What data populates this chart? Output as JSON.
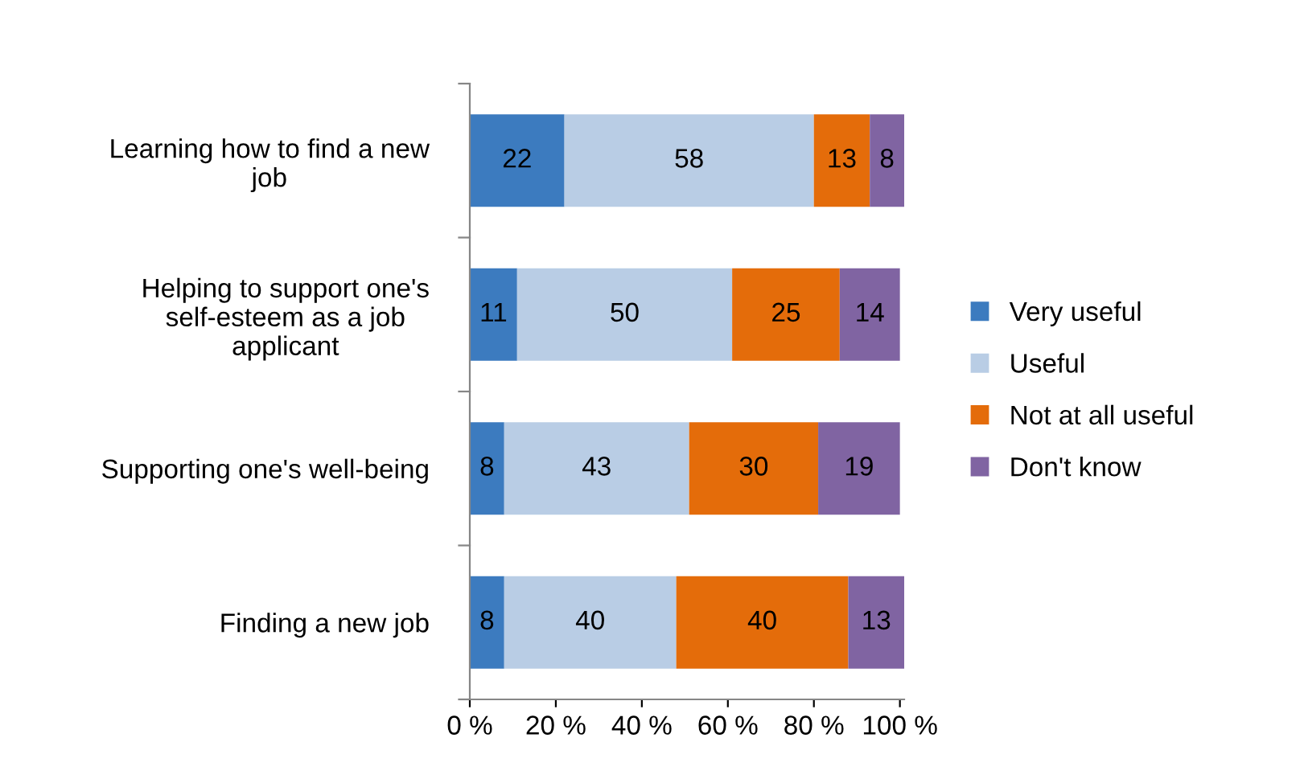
{
  "chart_data": {
    "type": "bar",
    "orientation": "horizontal",
    "stacked": true,
    "data_labels": true,
    "categories": [
      "Learning how to find a new\njob",
      "Helping to support one's\nself-esteem as a job\napplicant",
      "Supporting one's well-being",
      "Finding a new job"
    ],
    "series": [
      {
        "name": "Very useful",
        "color": "#3c7bbf",
        "values": [
          22,
          11,
          8,
          8
        ]
      },
      {
        "name": "Useful",
        "color": "#b9cde5",
        "values": [
          58,
          50,
          43,
          40
        ]
      },
      {
        "name": "Not at all useful",
        "color": "#e46c0a",
        "values": [
          13,
          25,
          30,
          40
        ]
      },
      {
        "name": "Don't know",
        "color": "#8064a2",
        "values": [
          8,
          14,
          19,
          13
        ]
      }
    ],
    "xlim": [
      0,
      101
    ],
    "xticks": [
      {
        "value": 0,
        "label": "0 %"
      },
      {
        "value": 20,
        "label": "20 %"
      },
      {
        "value": 40,
        "label": "40 %"
      },
      {
        "value": 60,
        "label": "60 %"
      },
      {
        "value": 80,
        "label": "80 %"
      },
      {
        "value": 100,
        "label": "100 %"
      }
    ],
    "grid": false,
    "legend": "right"
  }
}
